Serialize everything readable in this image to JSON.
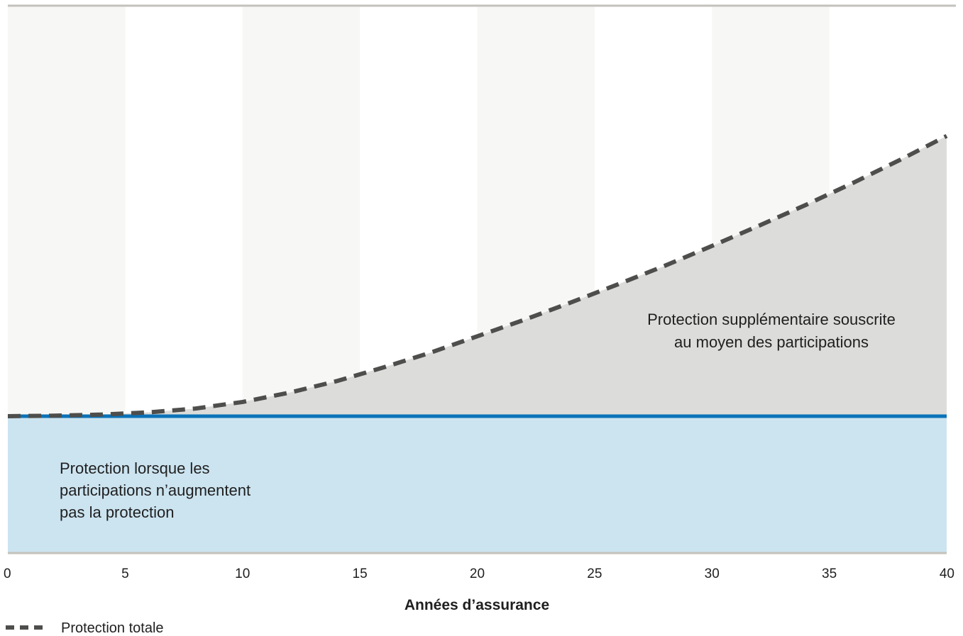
{
  "chart_data": {
    "type": "area",
    "xlabel": "Années d’assurance",
    "xlim": [
      0,
      40
    ],
    "x_ticks": [
      0,
      5,
      10,
      15,
      20,
      25,
      30,
      35,
      40
    ],
    "ylim": [
      0,
      100
    ],
    "grid": "alternating vertical bands",
    "base_protection": {
      "value": 25,
      "label_lines": [
        "Protection lorsque les",
        "participations n’augmentent",
        "pas la protection"
      ]
    },
    "additional_protection": {
      "label_lines": [
        "Protection supplémentaire souscrite",
        "au moyen des participations"
      ]
    },
    "series": [
      {
        "name": "Protection totale",
        "x": [
          0,
          2,
          4,
          6,
          8,
          10,
          12,
          14,
          16,
          18,
          20,
          22,
          24,
          26,
          28,
          30,
          32,
          34,
          36,
          38,
          40
        ],
        "values": [
          25.0,
          25.1,
          25.3,
          25.7,
          26.4,
          27.6,
          29.3,
          31.4,
          33.9,
          36.6,
          39.6,
          42.6,
          45.8,
          49.1,
          52.5,
          56.1,
          59.8,
          63.6,
          67.6,
          71.8,
          76.2
        ]
      }
    ],
    "legend": {
      "placement": "bottom-left",
      "entries": [
        "Protection totale"
      ]
    }
  },
  "colors": {
    "band": "#f7f7f5",
    "area_fill": "#dcdcda",
    "base_fill": "#cce4f0",
    "base_line": "#0a72b8",
    "dash_line": "#4e4e4c",
    "border": "#c4c2bc"
  }
}
